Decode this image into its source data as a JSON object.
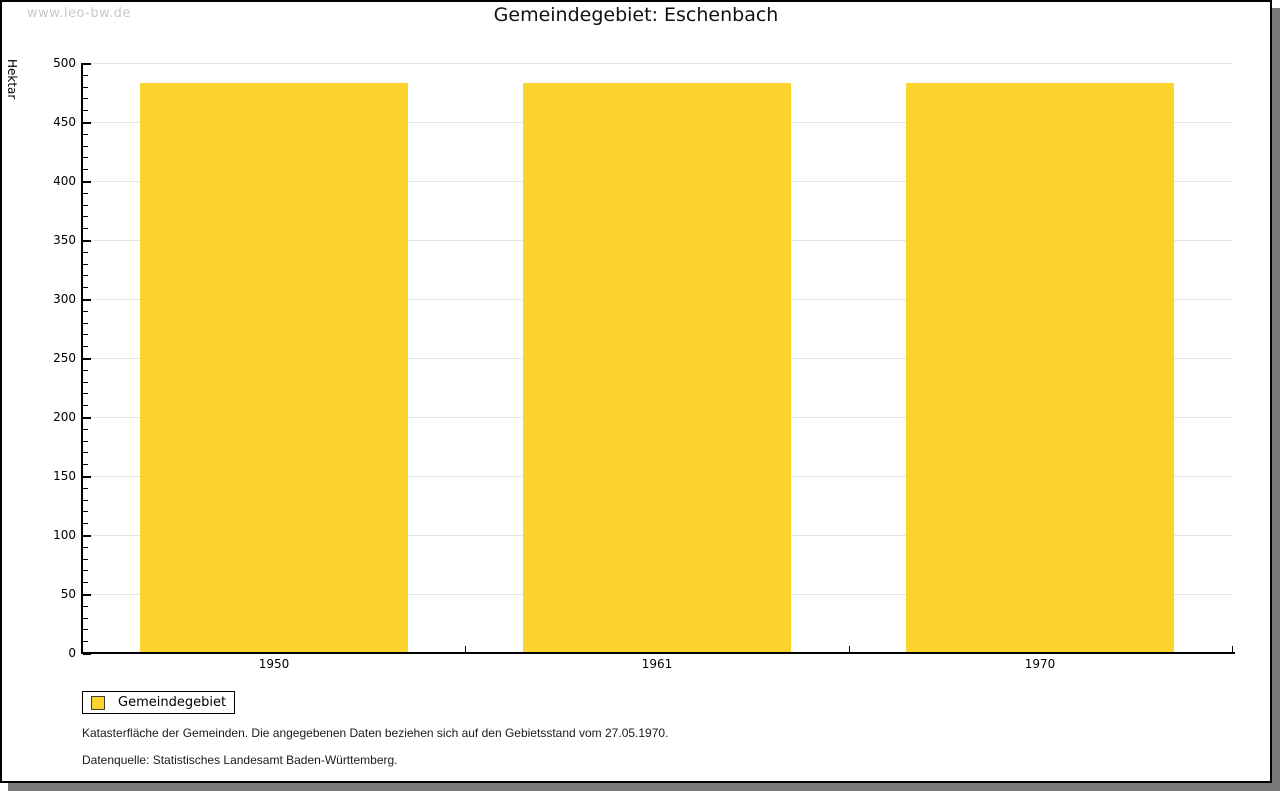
{
  "watermark": "www.leo-bw.de",
  "header": {
    "title": "Gemeindegebiet: Eschenbach"
  },
  "legend": {
    "label": "Gemeindegebiet"
  },
  "notes": {
    "line1": "Katasterfläche der Gemeinden. Die angegebenen Daten beziehen sich auf den Gebietsstand vom 27.05.1970.",
    "line2": "Datenquelle: Statistisches Landesamt Baden-Württemberg."
  },
  "colors": {
    "bar": "#FCD42D",
    "grid": "#e4e4e4",
    "axis": "#000000",
    "frame_shadow": "#787878",
    "watermark": "#c8c8c8"
  },
  "chart_data": {
    "type": "bar",
    "categories": [
      "1950",
      "1961",
      "1970"
    ],
    "series": [
      {
        "name": "Gemeindegebiet",
        "values": [
          483,
          483,
          483
        ]
      }
    ],
    "title": "Gemeindegebiet: Eschenbach",
    "xlabel": "",
    "ylabel": "Hektar",
    "ylim": [
      0,
      500
    ],
    "ytick_step": 50,
    "ytick_minor_step": 10,
    "grid": true,
    "legend_position": "bottom-left",
    "bar_color": "#FCD42D"
  }
}
